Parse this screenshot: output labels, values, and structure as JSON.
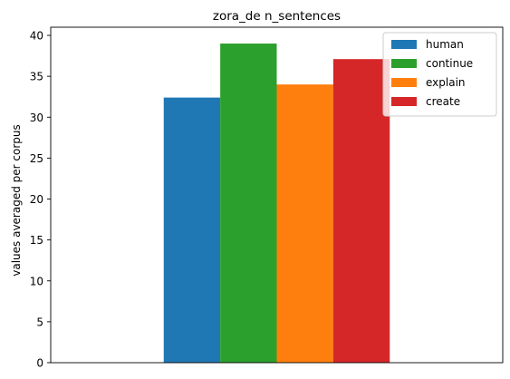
{
  "chart_data": {
    "type": "bar",
    "title": "zora_de n_sentences",
    "xlabel": "",
    "ylabel": "values averaged per corpus",
    "categories": [
      ""
    ],
    "ylim": [
      0,
      41
    ],
    "yticks": [
      0,
      5,
      10,
      15,
      20,
      25,
      30,
      35,
      40
    ],
    "grid": false,
    "legend_position": "top-right",
    "series": [
      {
        "name": "human",
        "values": [
          32.4
        ],
        "color": "#1f77b4"
      },
      {
        "name": "continue",
        "values": [
          39.0
        ],
        "color": "#2ca02c"
      },
      {
        "name": "explain",
        "values": [
          34.0
        ],
        "color": "#ff7f0e"
      },
      {
        "name": "create",
        "values": [
          37.1
        ],
        "color": "#d62728"
      }
    ]
  }
}
